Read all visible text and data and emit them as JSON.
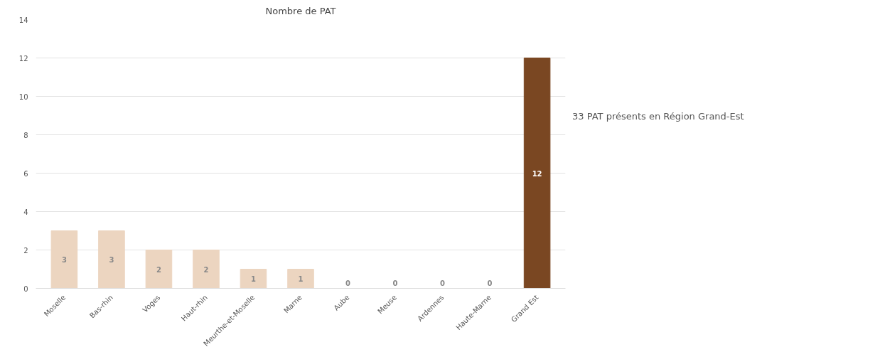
{
  "chart_data": {
    "type": "bar",
    "title": "Nombre de PAT",
    "categories": [
      "Moselle",
      "Bas-rhin",
      "Voges",
      "Haut-rhin",
      "Meurthe-et-Moselle",
      "Marne",
      "Aube",
      "Meuse",
      "Ardennes",
      "Haute-Marne",
      "Grand Est"
    ],
    "values": [
      3,
      3,
      2,
      2,
      1,
      1,
      0,
      0,
      0,
      0,
      12
    ],
    "colors": [
      "#ecd5c0",
      "#ecd5c0",
      "#ecd5c0",
      "#ecd5c0",
      "#ecd5c0",
      "#ecd5c0",
      "#ecd5c0",
      "#ecd5c0",
      "#ecd5c0",
      "#ecd5c0",
      "#7a4722"
    ],
    "ylim": [
      0,
      14
    ],
    "yticks": [
      0,
      2,
      4,
      6,
      8,
      10,
      12,
      14
    ],
    "grid": "y",
    "data_labels": true,
    "annotations": [
      "33 PAT présents en Région Grand-Est"
    ]
  }
}
